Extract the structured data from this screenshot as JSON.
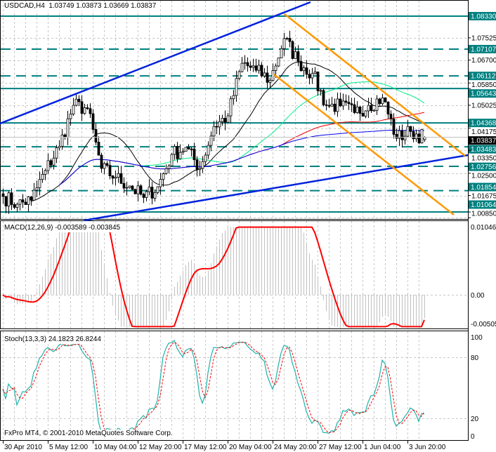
{
  "window": {
    "symbol_header": "USDCAD,H4  1.03749 1.03873 1.03669 1.03837",
    "macd_header": "MACD(12,26,9) -0.003589 -0.003845",
    "stoch_header": "Stoch(13,3,3) 24.1823 26.8244",
    "copyright": "FxPro MT4, © 2001-2010 MetaQuotes Software Corp."
  },
  "colors": {
    "background": "#ffffff",
    "level_line": "#008080",
    "trendline": "#0022dd",
    "channel": "#ff9900",
    "ma_fast": "#000000",
    "ma_medium": "#00ee88",
    "ma_slow": "#ee0000",
    "ma_long": "#0000ee",
    "macd_histogram": "#c0c0c0",
    "macd_signal": "#ff0000",
    "stoch_main": "#20b2aa",
    "stoch_signal": "#ff0000",
    "current_price_box": "#000000"
  },
  "chart_data": {
    "type": "candlestick",
    "symbol": "USDCAD",
    "timeframe": "H4",
    "ohlc_last": {
      "open": 1.03749,
      "high": 1.03873,
      "low": 1.03669,
      "close": 1.03837
    },
    "approx_close_every_5_bars": [
      1.0164,
      1.0135,
      1.015,
      1.026,
      1.035,
      1.0502,
      1.049,
      1.0268,
      1.0235,
      1.0203,
      1.016,
      1.02,
      1.032,
      1.0346,
      1.0268,
      1.0424,
      1.0463,
      1.0658,
      1.0632,
      1.0595,
      1.075,
      1.0665,
      1.062,
      1.0502,
      1.05,
      1.0475,
      1.0502,
      1.053,
      1.038,
      1.0405,
      1.03837
    ],
    "price_axis_ticks": [
      "1.07525",
      "1.06700",
      "1.05850",
      "1.05025",
      "1.04175",
      "1.03350",
      "1.02500",
      "1.01675",
      "1.00850"
    ],
    "price_levels": [
      {
        "label": "1.08330",
        "style": "solid"
      },
      {
        "label": "1.07107",
        "style": "dashed"
      },
      {
        "label": "1.06112",
        "style": "dashed"
      },
      {
        "label": "1.05643",
        "style": "solid"
      },
      {
        "label": "1.04368",
        "style": "solid"
      },
      {
        "label": "1.03483",
        "style": "dashed"
      },
      {
        "label": "1.02756",
        "style": "dashed"
      },
      {
        "label": "1.01854",
        "style": "dashed"
      },
      {
        "label": "1.01064",
        "style": "solid"
      }
    ],
    "current_price": "1.03837",
    "price_range": [
      1.00804,
      1.0893
    ],
    "time_labels": [
      "30 Apr 2010",
      "5 May 12:00",
      "10 May 04:00",
      "12 May 20:00",
      "17 May 12:00",
      "20 May 04:00",
      "24 May 20:00",
      "27 May 12:00",
      "1 Jun 04:00",
      "3 Jun 20:00"
    ],
    "moving_average_periods": [
      21,
      50,
      100,
      200
    ],
    "macd": {
      "params": "12,26,9",
      "main": -0.003589,
      "signal": -0.003845,
      "axis_ticks": [
        "0.01046",
        "0.00",
        "-0.00505"
      ],
      "range": [
        -0.00505,
        0.01046
      ]
    },
    "stochastic": {
      "params": "13,3,3",
      "main": 24.1823,
      "signal": 26.8244,
      "axis_ticks": [
        "100",
        "80",
        "20",
        "0"
      ],
      "range": [
        0,
        100
      ]
    },
    "grid": true
  }
}
